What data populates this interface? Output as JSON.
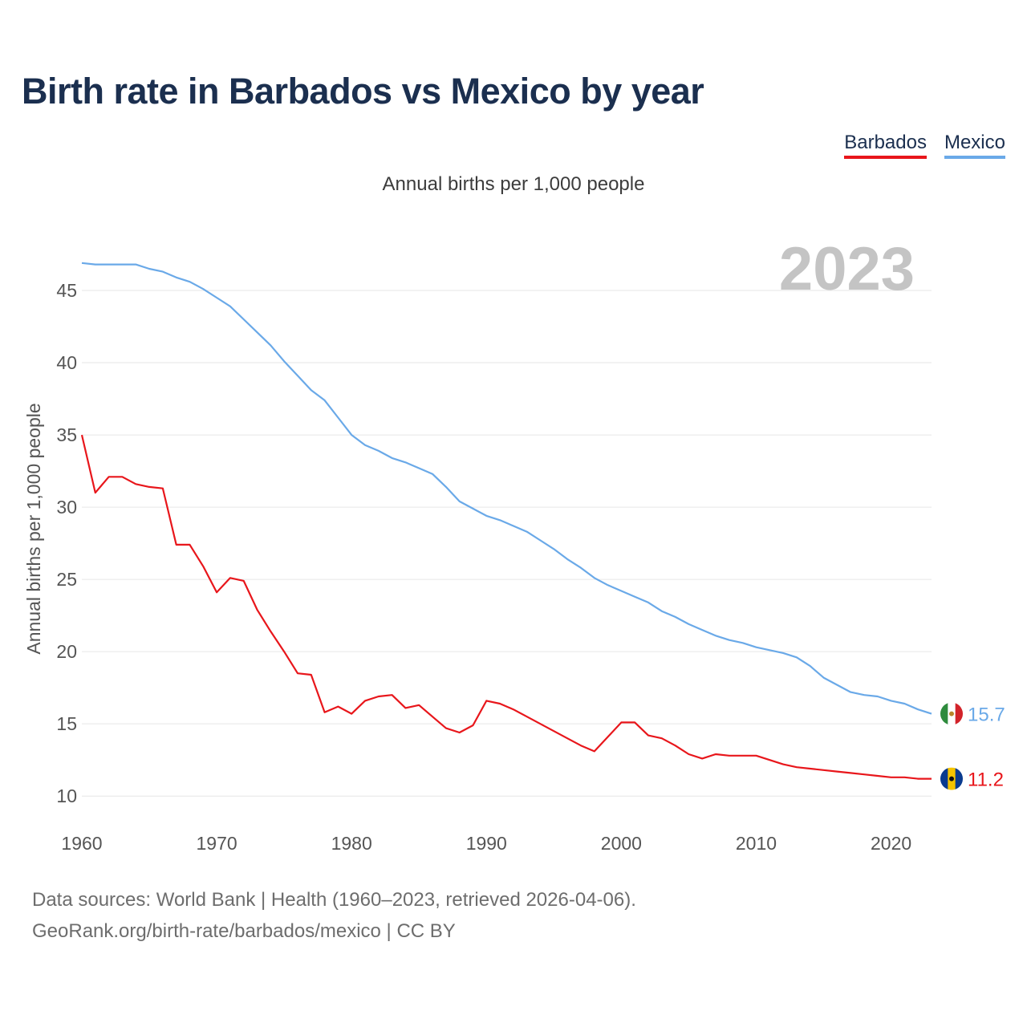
{
  "title": "Birth rate in Barbados vs Mexico by year",
  "legend": [
    {
      "name": "Barbados",
      "color": "#e8161b"
    },
    {
      "name": "Mexico",
      "color": "#6aa9e8"
    }
  ],
  "subtitle": "Annual births per 1,000 people",
  "footer": {
    "line1": "Data sources: World Bank | Health (1960–2023, retrieved 2026-04-06).",
    "line2": "GeoRank.org/birth-rate/barbados/mexico | CC BY"
  },
  "chart_data": {
    "type": "line",
    "title": "Birth rate in Barbados vs Mexico by year",
    "ylabel": "Annual births per 1,000 people",
    "xlabel": "",
    "year_label": "2023",
    "xlim": [
      1960,
      2023
    ],
    "ylim": [
      8.9,
      49
    ],
    "yticks": [
      10,
      15,
      20,
      25,
      30,
      35,
      40,
      45
    ],
    "xticks": [
      1960,
      1970,
      1980,
      1990,
      2000,
      2010,
      2020
    ],
    "grid": true,
    "legend_position": "top-right",
    "x": [
      1960,
      1961,
      1962,
      1963,
      1964,
      1965,
      1966,
      1967,
      1968,
      1969,
      1970,
      1971,
      1972,
      1973,
      1974,
      1975,
      1976,
      1977,
      1978,
      1979,
      1980,
      1981,
      1982,
      1983,
      1984,
      1985,
      1986,
      1987,
      1988,
      1989,
      1990,
      1991,
      1992,
      1993,
      1994,
      1995,
      1996,
      1997,
      1998,
      1999,
      2000,
      2001,
      2002,
      2003,
      2004,
      2005,
      2006,
      2007,
      2008,
      2009,
      2010,
      2011,
      2012,
      2013,
      2014,
      2015,
      2016,
      2017,
      2018,
      2019,
      2020,
      2021,
      2022,
      2023
    ],
    "series": [
      {
        "name": "Barbados",
        "color": "#e8161b",
        "end_label": "11.2",
        "values": [
          35.0,
          31.0,
          32.1,
          32.1,
          31.6,
          31.4,
          31.3,
          27.4,
          27.4,
          25.9,
          24.1,
          25.1,
          24.9,
          22.9,
          21.4,
          20.0,
          18.5,
          18.4,
          15.8,
          16.2,
          15.7,
          16.6,
          16.9,
          17.0,
          16.1,
          16.3,
          15.5,
          14.7,
          14.4,
          14.9,
          16.6,
          16.4,
          16.0,
          15.5,
          15.0,
          14.5,
          14.0,
          13.5,
          13.1,
          14.1,
          15.1,
          15.1,
          14.2,
          14.0,
          13.5,
          12.9,
          12.6,
          12.9,
          12.8,
          12.8,
          12.8,
          12.5,
          12.2,
          12.0,
          11.9,
          11.8,
          11.7,
          11.6,
          11.5,
          11.4,
          11.3,
          11.3,
          11.2,
          11.2
        ]
      },
      {
        "name": "Mexico",
        "color": "#6aa9e8",
        "end_label": "15.7",
        "values": [
          46.9,
          46.8,
          46.8,
          46.8,
          46.8,
          46.5,
          46.3,
          45.9,
          45.6,
          45.1,
          44.5,
          43.9,
          43.0,
          42.1,
          41.2,
          40.1,
          39.1,
          38.1,
          37.4,
          36.2,
          35.0,
          34.3,
          33.9,
          33.4,
          33.1,
          32.7,
          32.3,
          31.4,
          30.4,
          29.9,
          29.4,
          29.1,
          28.7,
          28.3,
          27.7,
          27.1,
          26.4,
          25.8,
          25.1,
          24.6,
          24.2,
          23.8,
          23.4,
          22.8,
          22.4,
          21.9,
          21.5,
          21.1,
          20.8,
          20.6,
          20.3,
          20.1,
          19.9,
          19.6,
          19.0,
          18.2,
          17.7,
          17.2,
          17.0,
          16.9,
          16.6,
          16.4,
          16.0,
          15.7
        ]
      }
    ]
  }
}
